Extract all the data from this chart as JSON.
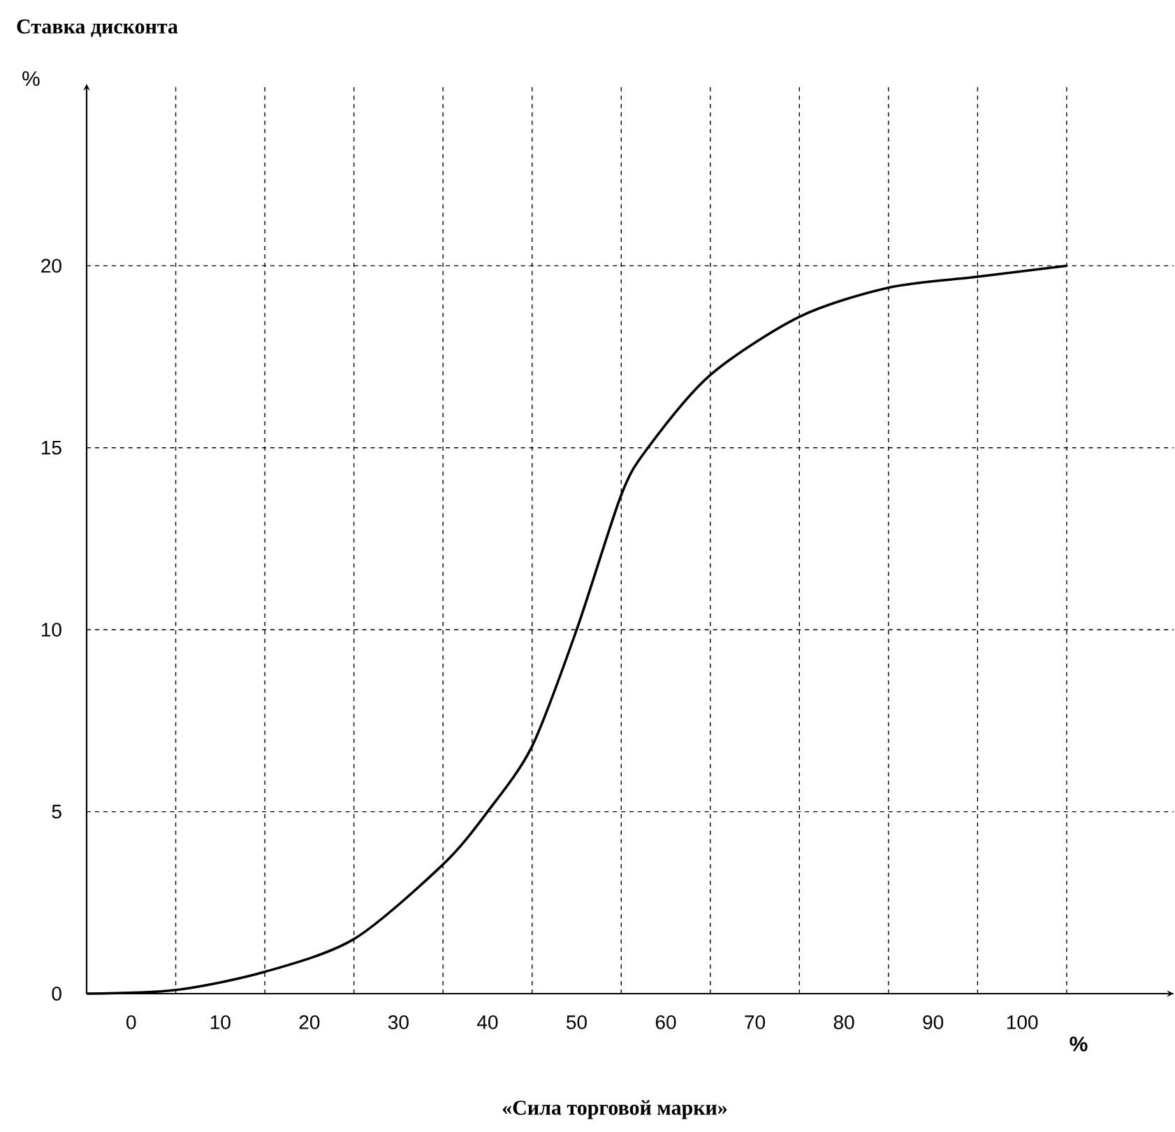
{
  "chart_data": {
    "type": "line",
    "ylabel": "Ставка дисконта",
    "xlabel": "«Сила торговой марки»",
    "annotations": [
      "%",
      "%"
    ],
    "x": [
      -5,
      5,
      15,
      25,
      35,
      40,
      45,
      50,
      55,
      58,
      65,
      75,
      85,
      95,
      105
    ],
    "series": [
      {
        "color": "#000000",
        "values": [
          0,
          0.1,
          0.6,
          1.5,
          3.55,
          5.0,
          6.8,
          10,
          13.7,
          15,
          17.0,
          18.6,
          19.4,
          19.7,
          20
        ]
      }
    ],
    "xlim": [
      -5,
      117
    ],
    "ylim": [
      0,
      25
    ],
    "xticks": [
      0,
      10,
      20,
      30,
      40,
      50,
      60,
      70,
      80,
      90,
      100,
      {
        "value": 5,
        "label": null
      },
      {
        "value": 15,
        "label": null
      },
      {
        "value": 25,
        "label": null
      },
      {
        "value": 35,
        "label": null
      },
      {
        "value": 45,
        "label": null
      },
      {
        "value": 55,
        "label": null
      },
      {
        "value": 65,
        "label": null
      },
      {
        "value": 75,
        "label": null
      },
      {
        "value": 85,
        "label": null
      },
      {
        "value": 95,
        "label": null
      },
      {
        "value": 105,
        "label": null
      }
    ],
    "yticks": [
      0,
      5,
      10,
      15,
      20
    ],
    "grid": true
  }
}
